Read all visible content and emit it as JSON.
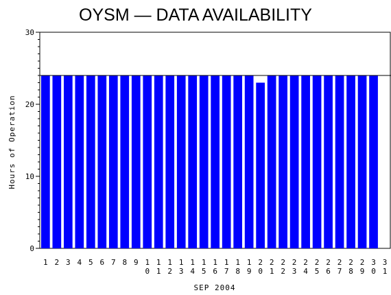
{
  "chart_data": {
    "type": "bar",
    "title": "OYSM — DATA AVAILABILITY",
    "xlabel": "SEP 2004",
    "ylabel": "Hours of Operation",
    "ylim": [
      0,
      30
    ],
    "yticks": [
      0,
      10,
      20,
      30
    ],
    "reference_line": 24,
    "categories": [
      "1",
      "2",
      "3",
      "4",
      "5",
      "6",
      "7",
      "8",
      "9",
      "10",
      "11",
      "12",
      "13",
      "14",
      "15",
      "16",
      "17",
      "18",
      "19",
      "20",
      "21",
      "22",
      "23",
      "24",
      "25",
      "26",
      "27",
      "28",
      "29",
      "30",
      "31"
    ],
    "values": [
      24,
      24,
      24,
      24,
      24,
      24,
      24,
      24,
      24,
      24,
      24,
      24,
      24,
      24,
      24,
      24,
      24,
      24,
      24,
      23,
      24,
      24,
      24,
      24,
      24,
      24,
      24,
      24,
      24,
      24,
      null
    ],
    "bar_color": "#0000ff",
    "grid": false
  }
}
